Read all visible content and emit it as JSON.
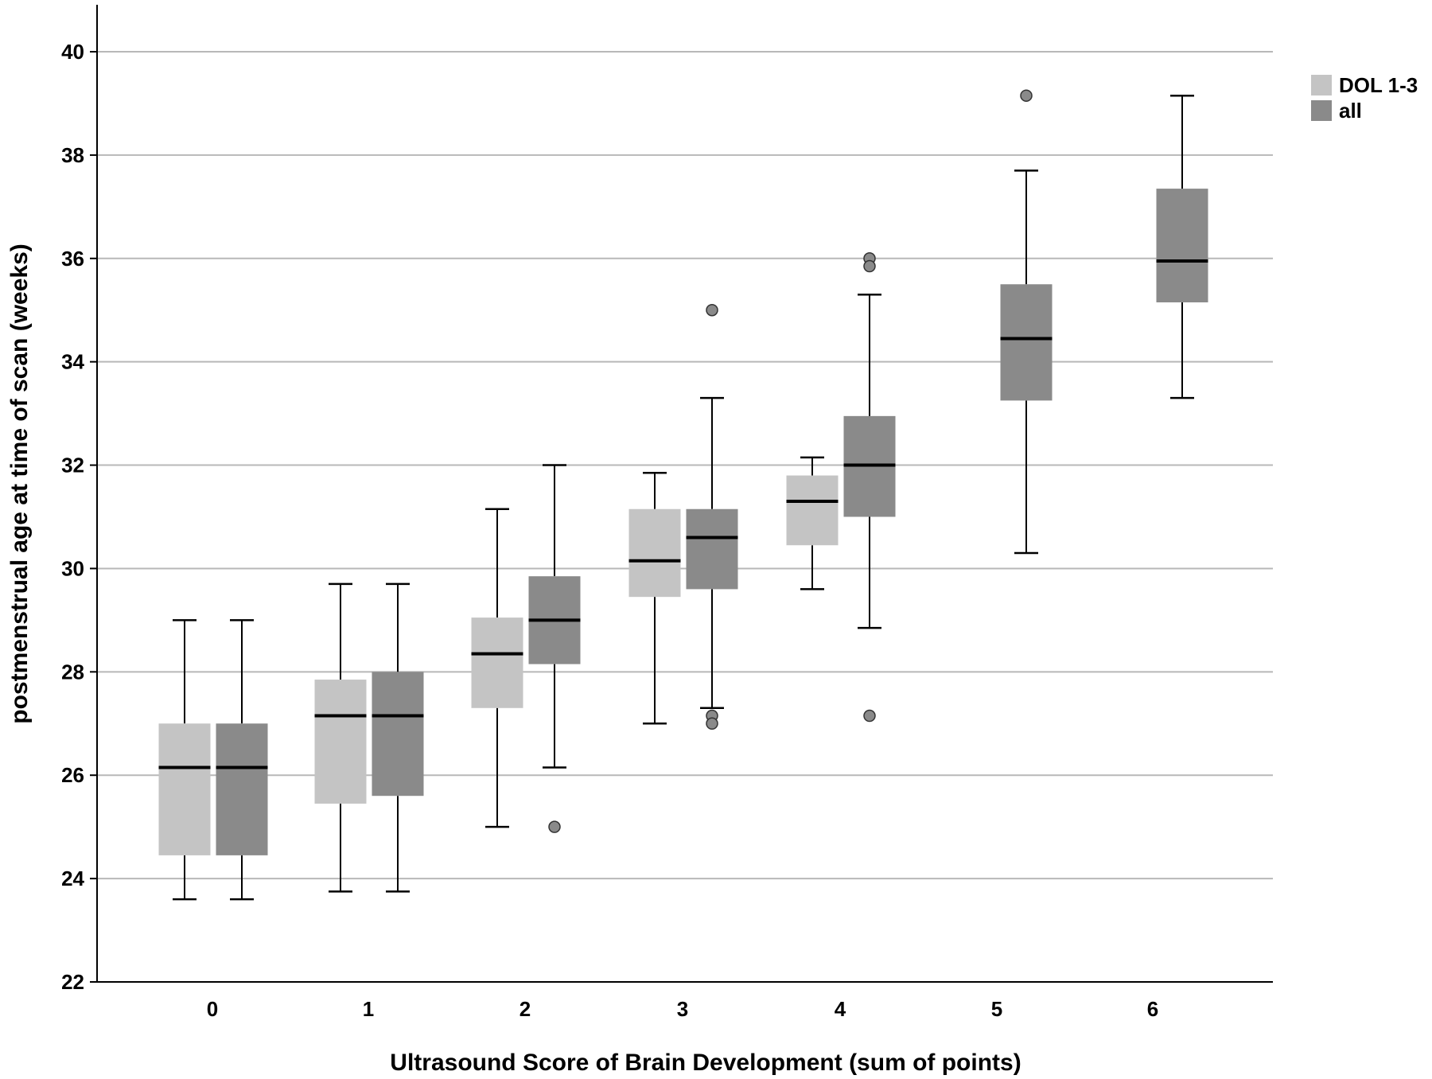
{
  "chart_data": {
    "type": "boxplot",
    "title": "",
    "xlabel": "Ultrasound Score of Brain Development (sum of points)",
    "ylabel": "postmenstrual age at time of scan (weeks)",
    "categories": [
      "0",
      "1",
      "2",
      "3",
      "4",
      "5",
      "6"
    ],
    "ylim": [
      22,
      41
    ],
    "yticks": [
      22,
      24,
      26,
      28,
      30,
      32,
      34,
      36,
      38,
      40
    ],
    "grid": true,
    "legend_position": "top-right",
    "series": [
      {
        "name": "DOL 1-3",
        "color": "#c4c4c4",
        "boxes": [
          {
            "category": "0",
            "min": 23.6,
            "q1": 24.45,
            "median": 26.15,
            "q3": 27.0,
            "max": 29.0,
            "outliers": []
          },
          {
            "category": "1",
            "min": 23.75,
            "q1": 25.45,
            "median": 27.15,
            "q3": 27.85,
            "max": 29.7,
            "outliers": []
          },
          {
            "category": "2",
            "min": 25.0,
            "q1": 27.3,
            "median": 28.35,
            "q3": 29.05,
            "max": 31.15,
            "outliers": []
          },
          {
            "category": "3",
            "min": 27.0,
            "q1": 29.45,
            "median": 30.15,
            "q3": 31.15,
            "max": 31.85,
            "outliers": []
          },
          {
            "category": "4",
            "min": 29.6,
            "q1": 30.45,
            "median": 31.3,
            "q3": 31.8,
            "max": 32.15,
            "outliers": []
          }
        ]
      },
      {
        "name": "all",
        "color": "#8a8a8a",
        "boxes": [
          {
            "category": "0",
            "min": 23.6,
            "q1": 24.45,
            "median": 26.15,
            "q3": 27.0,
            "max": 29.0,
            "outliers": []
          },
          {
            "category": "1",
            "min": 23.75,
            "q1": 25.6,
            "median": 27.15,
            "q3": 28.0,
            "max": 29.7,
            "outliers": []
          },
          {
            "category": "2",
            "min": 26.15,
            "q1": 28.15,
            "median": 29.0,
            "q3": 29.85,
            "max": 32.0,
            "outliers": [
              25.0
            ]
          },
          {
            "category": "3",
            "min": 27.3,
            "q1": 29.6,
            "median": 30.6,
            "q3": 31.15,
            "max": 33.3,
            "outliers": [
              35.0,
              27.15,
              27.0
            ]
          },
          {
            "category": "4",
            "min": 28.85,
            "q1": 31.0,
            "median": 32.0,
            "q3": 32.95,
            "max": 35.3,
            "outliers": [
              36.0,
              35.85,
              27.15
            ]
          },
          {
            "category": "5",
            "min": 30.3,
            "q1": 33.25,
            "median": 34.45,
            "q3": 35.5,
            "max": 37.7,
            "outliers": [
              39.15
            ]
          },
          {
            "category": "6",
            "min": 33.3,
            "q1": 35.15,
            "median": 35.95,
            "q3": 37.35,
            "max": 39.15,
            "outliers": []
          }
        ]
      }
    ]
  }
}
